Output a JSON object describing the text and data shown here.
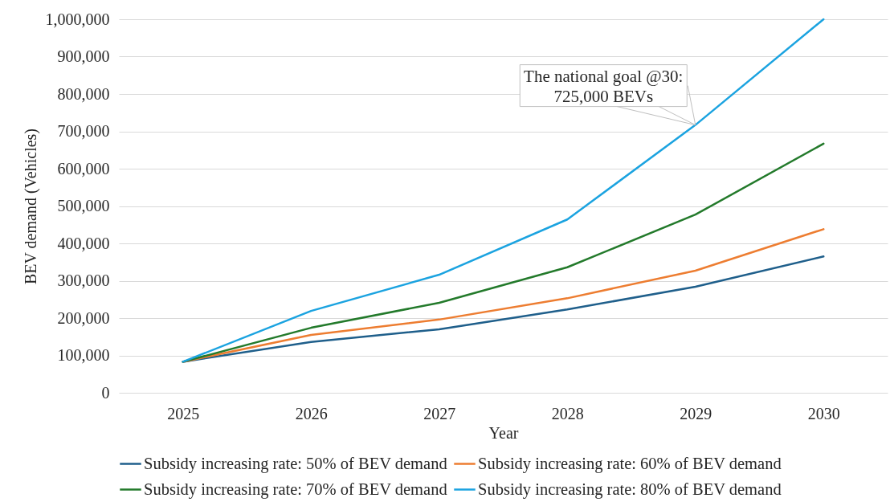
{
  "chart_data": {
    "type": "line",
    "xlabel": "Year",
    "ylabel": "BEV demand (Vehicles)",
    "categories": [
      "2025",
      "2026",
      "2027",
      "2028",
      "2029",
      "2030"
    ],
    "series": [
      {
        "name": "Subsidy increasing rate: 50% of BEV demand",
        "color": "#1f5f8b",
        "values": [
          83000,
          136000,
          170000,
          223000,
          284000,
          365000
        ]
      },
      {
        "name": "Subsidy increasing rate: 60% of BEV demand",
        "color": "#ed7d31",
        "values": [
          83000,
          155000,
          196000,
          253000,
          327000,
          438000
        ]
      },
      {
        "name": "Subsidy increasing rate: 70% of BEV demand",
        "color": "#237a2b",
        "values": [
          83000,
          174000,
          241000,
          336000,
          477000,
          667000
        ]
      },
      {
        "name": "Subsidy increasing rate: 80% of BEV demand",
        "color": "#1ba3e0",
        "values": [
          83000,
          219000,
          316000,
          464000,
          717000,
          1000000
        ]
      }
    ],
    "ylim": [
      0,
      1000000
    ],
    "yticks": [
      0,
      {
        "value": 100000,
        "label": "100,000"
      },
      {
        "value": 200000,
        "label": "200,000"
      },
      {
        "value": 300000,
        "label": "300,000"
      },
      {
        "value": 400000,
        "label": "400,000"
      },
      {
        "value": 500000,
        "label": "500,000"
      },
      {
        "value": 600000,
        "label": "600,000"
      },
      {
        "value": 700000,
        "label": "700,000"
      },
      {
        "value": 800000,
        "label": "800,000"
      },
      {
        "value": 900000,
        "label": "900,000"
      },
      {
        "value": 1000000,
        "label": "1,000,000"
      }
    ],
    "grid": "y",
    "legend": "bottom",
    "line_style": "solid",
    "annotations": [
      {
        "text": "The national goal @30:\n725,000 BEVs",
        "x": "2029",
        "y": 717000
      }
    ]
  }
}
